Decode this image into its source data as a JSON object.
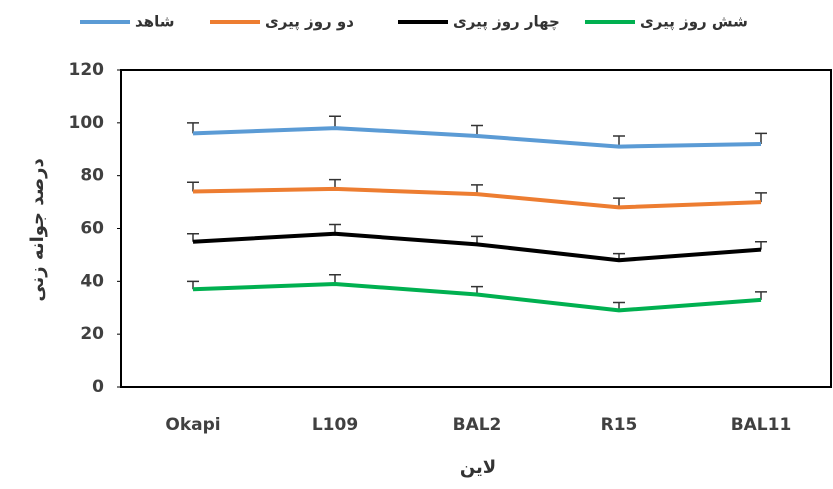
{
  "chart_data": {
    "type": "line",
    "x_label": "لاین",
    "y_label": "درصد جوانه زنی",
    "categories": [
      "Okapi",
      "L109",
      "BAL2",
      "R15",
      "BAL11"
    ],
    "series": [
      {
        "name": "شاهد",
        "color": "#5b9bd5",
        "values": [
          96,
          98,
          95,
          91,
          92
        ],
        "errors": [
          4,
          4.5,
          4,
          4,
          4
        ]
      },
      {
        "name": "دو روز پیری",
        "color": "#ed7d31",
        "values": [
          74,
          75,
          73,
          68,
          70
        ],
        "errors": [
          3.5,
          3.5,
          3.5,
          3.5,
          3.5
        ]
      },
      {
        "name": "چهار روز پیری",
        "color": "#000000",
        "values": [
          55,
          58,
          54,
          48,
          52
        ],
        "errors": [
          3,
          3.5,
          3,
          2.5,
          3
        ]
      },
      {
        "name": "شش روز پیری",
        "color": "#00b050",
        "values": [
          37,
          39,
          35,
          29,
          33
        ],
        "errors": [
          3,
          3.5,
          3,
          3,
          3
        ]
      }
    ],
    "ylim": [
      0,
      120
    ],
    "yticks": [
      0,
      20,
      40,
      60,
      80,
      100,
      120
    ],
    "grid": false
  }
}
